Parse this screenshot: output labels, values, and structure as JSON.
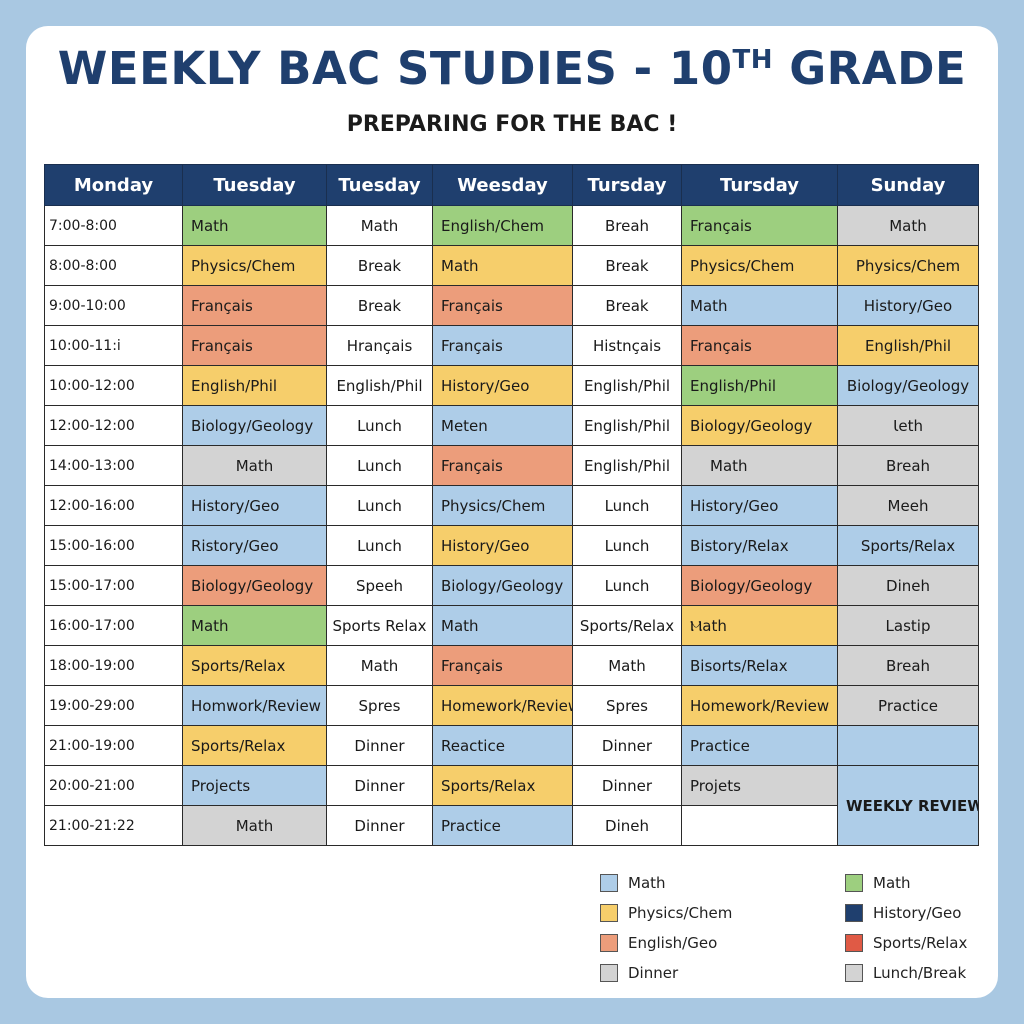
{
  "header": {
    "title_main": "WEEKLY BAC STUDIES - 10",
    "title_sup": "TH",
    "title_end": " GRADE",
    "subtitle": "PREPARING FOR THE BAC !"
  },
  "columns": [
    "Monday",
    "Tuesday",
    "Tuesday",
    "Weesday",
    "Tursday",
    "Tursday",
    "Sunday"
  ],
  "rows": [
    {
      "time": "7:00-8:00",
      "cells": [
        [
          "Math",
          "g"
        ],
        [
          "Math",
          "w"
        ],
        [
          "English/Chem",
          "g"
        ],
        [
          "Breah",
          "w"
        ],
        [
          "Français",
          "g"
        ],
        [
          "Math",
          "r"
        ]
      ]
    },
    {
      "time": "8:00-8:00",
      "cells": [
        [
          "Physics/Chem",
          "y"
        ],
        [
          "Break",
          "w"
        ],
        [
          "Math",
          "y"
        ],
        [
          "Break",
          "w"
        ],
        [
          "Physics/Chem",
          "y"
        ],
        [
          "Physics/Chem",
          "y"
        ]
      ]
    },
    {
      "time": "9:00-10:00",
      "cells": [
        [
          "Français",
          "o"
        ],
        [
          "Break",
          "w"
        ],
        [
          "Français",
          "o"
        ],
        [
          "Break",
          "w"
        ],
        [
          "Math",
          "b"
        ],
        [
          "History/Geo",
          "b"
        ]
      ]
    },
    {
      "time": "10:00-11:ⅰ",
      "cells": [
        [
          "Français",
          "o"
        ],
        [
          "Hrançais",
          "w"
        ],
        [
          "Français",
          "b"
        ],
        [
          "Histnçais",
          "w"
        ],
        [
          "Français",
          "o"
        ],
        [
          "English/Phil",
          "y"
        ]
      ]
    },
    {
      "time": "10:00-12:00",
      "cells": [
        [
          "English/Phil",
          "y"
        ],
        [
          "English/Phil",
          "w"
        ],
        [
          "History/Geo",
          "y"
        ],
        [
          "English/Phil",
          "w"
        ],
        [
          "English/Phil",
          "g"
        ],
        [
          "Biology/Geology",
          "b"
        ]
      ]
    },
    {
      "time": "12:00-12:00",
      "cells": [
        [
          "Biology/Geology",
          "b"
        ],
        [
          "Lunch",
          "w"
        ],
        [
          "Meten",
          "b"
        ],
        [
          "English/Phil",
          "w"
        ],
        [
          "Biology/Geology",
          "y"
        ],
        [
          "Ɩeth",
          "r"
        ]
      ]
    },
    {
      "time": "14:00-13:00",
      "cells": [
        [
          "Math",
          "r"
        ],
        [
          "Lunch",
          "w"
        ],
        [
          "Français",
          "o"
        ],
        [
          "English/Phil",
          "w"
        ],
        [
          "Math",
          "r"
        ],
        [
          "Breah",
          "r"
        ]
      ]
    },
    {
      "time": "12:00-16:00",
      "cells": [
        [
          "History/Geo",
          "b"
        ],
        [
          "Lunch",
          "w"
        ],
        [
          "Physics/Chem",
          "b"
        ],
        [
          "Lunch",
          "w"
        ],
        [
          "History/Geo",
          "b"
        ],
        [
          "Meeh",
          "r"
        ]
      ]
    },
    {
      "time": "15:00-16:00",
      "cells": [
        [
          "Ristory/Geo",
          "b"
        ],
        [
          "Lunch",
          "w"
        ],
        [
          "History/Geo",
          "y"
        ],
        [
          "Lunch",
          "w"
        ],
        [
          "Bistory/Relax",
          "b"
        ],
        [
          "Sports/Relax",
          "b"
        ]
      ]
    },
    {
      "time": "15:00-17:00",
      "cells": [
        [
          "Biology/Geology",
          "o"
        ],
        [
          "Speeh",
          "w"
        ],
        [
          "Biology/Geology",
          "b"
        ],
        [
          "Lunch",
          "w"
        ],
        [
          "Biology/Geology",
          "o"
        ],
        [
          "Dineh",
          "r"
        ]
      ]
    },
    {
      "time": "16:00-17:00",
      "cells": [
        [
          "Math",
          "g"
        ],
        [
          "Sports Relax",
          "w"
        ],
        [
          "Math",
          "b"
        ],
        [
          "Sports/Relax",
          "w"
        ],
        [
          "Ⲙath",
          "y"
        ],
        [
          "Lastip",
          "r"
        ]
      ]
    },
    {
      "time": "18:00-19:00",
      "cells": [
        [
          "Sports/Relax",
          "y"
        ],
        [
          "Math",
          "w"
        ],
        [
          "Français",
          "o"
        ],
        [
          "Math",
          "w"
        ],
        [
          "Bisorts/Relax",
          "b"
        ],
        [
          "Breah",
          "r"
        ]
      ]
    },
    {
      "time": "19:00-29:00",
      "cells": [
        [
          "Homwork/Review",
          "b"
        ],
        [
          "Spres",
          "w"
        ],
        [
          "Homework/Review",
          "y"
        ],
        [
          "Spres",
          "w"
        ],
        [
          "Homework/Review",
          "y"
        ],
        [
          "Practice",
          "r"
        ]
      ]
    },
    {
      "time": "21:00-19:00",
      "cells": [
        [
          "Sports/Relax",
          "y"
        ],
        [
          "Dinner",
          "w"
        ],
        [
          "Reactice",
          "b"
        ],
        [
          "Dinner",
          "w"
        ],
        [
          "Practice",
          "b"
        ],
        [
          "",
          "b"
        ]
      ]
    },
    {
      "time": "20:00-21:00",
      "cells": [
        [
          "Projects",
          "b"
        ],
        [
          "Dinner",
          "w"
        ],
        [
          "Sports/Relax",
          "y"
        ],
        [
          "Dinner",
          "w"
        ],
        [
          "Projets",
          "r"
        ]
      ]
    },
    {
      "time": "21:00-21:22",
      "cells": [
        [
          "Math",
          "r"
        ],
        [
          "Dinner",
          "w"
        ],
        [
          "Practice",
          "b"
        ],
        [
          "Dineh",
          "w"
        ],
        [
          "",
          "w"
        ]
      ]
    }
  ],
  "weekly_review": "WEEKLY REVIEW & PLAN",
  "legend_left": [
    {
      "label": "Math",
      "color": "#aecde8"
    },
    {
      "label": "Physics/Chem",
      "color": "#f6ce6b"
    },
    {
      "label": "English/Geo",
      "color": "#ec9d7b"
    },
    {
      "label": "Dinner",
      "color": "#d3d3d3"
    }
  ],
  "legend_right": [
    {
      "label": "Math",
      "color": "#9dcf7f"
    },
    {
      "label": "History/Geo",
      "color": "#1f3f6e"
    },
    {
      "label": "Sports/Relax",
      "color": "#e05a45"
    },
    {
      "label": "Lunch/Break",
      "color": "#d3d3d3"
    }
  ]
}
